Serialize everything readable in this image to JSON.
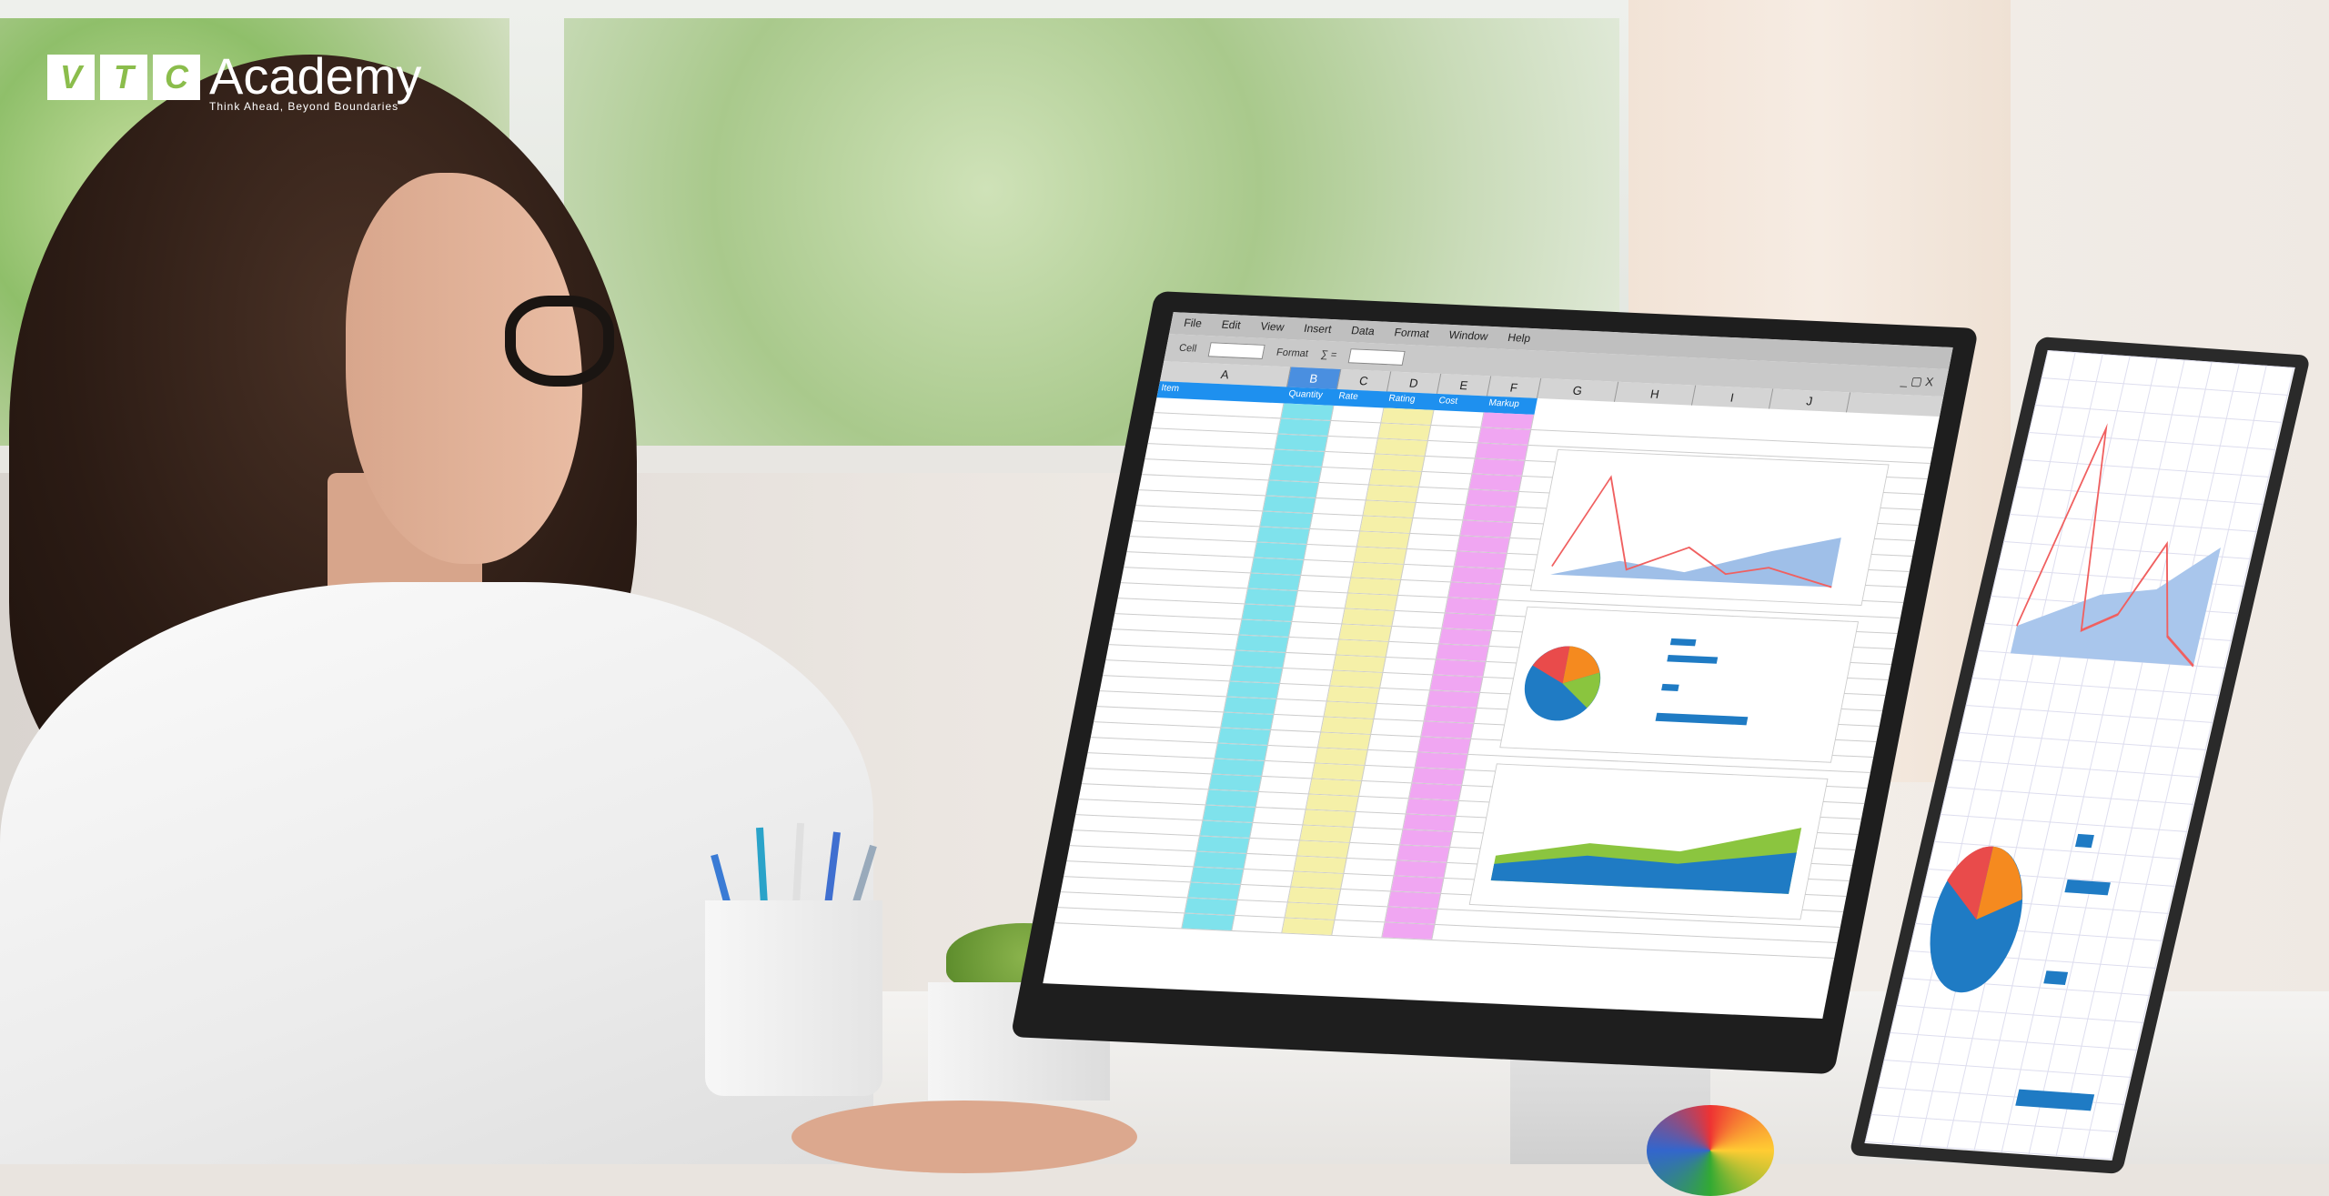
{
  "logo": {
    "letters": [
      "V",
      "T",
      "C"
    ],
    "name": "Academy",
    "tagline": "Think Ahead, Beyond Boundaries"
  },
  "spreadsheet": {
    "menu": [
      "File",
      "Edit",
      "View",
      "Insert",
      "Data",
      "Format",
      "Window",
      "Help"
    ],
    "toolbar": {
      "cell_label": "Cell",
      "format_label": "Format",
      "sum_symbol": "∑ ="
    },
    "window_buttons": "_ ▢ X",
    "columns": [
      "A",
      "B",
      "C",
      "D",
      "E",
      "F",
      "G",
      "H",
      "I",
      "J"
    ],
    "selected_column": "B",
    "header_row": [
      "Item",
      "Quantity",
      "Rate",
      "Rating",
      "Cost",
      "Markup"
    ]
  },
  "colors": {
    "header_blue": "#1e90ef",
    "col_b": "#7fe2ec",
    "col_d": "#f5f0a8",
    "col_f": "#f0a6f2",
    "logo_green": "#8bbd4c"
  }
}
